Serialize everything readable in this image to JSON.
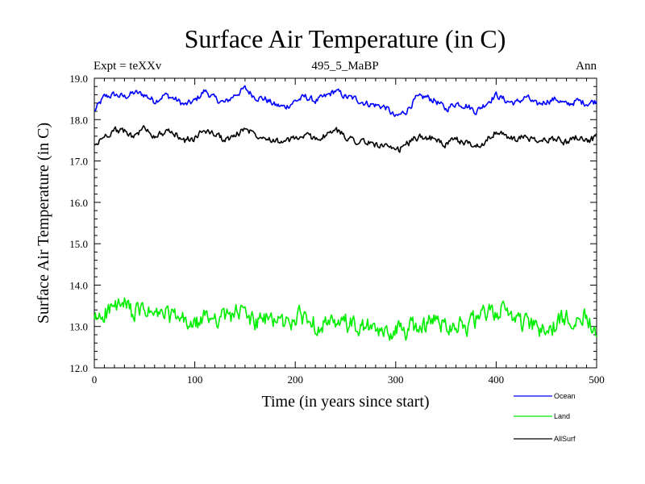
{
  "chart_data": {
    "type": "line",
    "title": "Surface Air Temperature (in C)",
    "subtitle": "495_5_MaBP",
    "experiment_label": "Expt = teXXv",
    "season_label": "Ann",
    "xlabel": "Time (in years since start)",
    "ylabel": "Surface Air Temperature (in C)",
    "xlim": [
      0,
      500
    ],
    "ylim": [
      12.0,
      19.0
    ],
    "xticks": [
      0,
      100,
      200,
      300,
      400,
      500
    ],
    "xtick_labels": [
      "0",
      "100",
      "200",
      "300",
      "400",
      "500"
    ],
    "yticks": [
      12,
      13,
      14,
      15,
      16,
      17,
      18,
      19
    ],
    "ytick_labels": [
      "12.0",
      "13.0",
      "14.0",
      "15.0",
      "16.0",
      "17.0",
      "18.0",
      "19.0"
    ],
    "legend_position": "bottom-right, below plot",
    "series": [
      {
        "name": "Ocean",
        "color": "#0000ff",
        "x": [
          0,
          10,
          20,
          30,
          40,
          50,
          60,
          70,
          80,
          90,
          100,
          110,
          120,
          130,
          140,
          150,
          160,
          170,
          180,
          190,
          200,
          210,
          220,
          230,
          240,
          250,
          260,
          270,
          280,
          290,
          300,
          310,
          320,
          330,
          340,
          350,
          360,
          370,
          380,
          390,
          400,
          410,
          420,
          430,
          440,
          450,
          460,
          470,
          480,
          490,
          500
        ],
        "values": [
          18.2,
          18.55,
          18.6,
          18.55,
          18.65,
          18.6,
          18.45,
          18.6,
          18.5,
          18.35,
          18.45,
          18.7,
          18.5,
          18.4,
          18.6,
          18.75,
          18.55,
          18.5,
          18.35,
          18.3,
          18.45,
          18.55,
          18.45,
          18.55,
          18.7,
          18.55,
          18.5,
          18.4,
          18.35,
          18.3,
          18.05,
          18.2,
          18.5,
          18.55,
          18.45,
          18.25,
          18.4,
          18.35,
          18.2,
          18.4,
          18.6,
          18.45,
          18.4,
          18.55,
          18.35,
          18.45,
          18.5,
          18.35,
          18.45,
          18.4,
          18.45
        ]
      },
      {
        "name": "Land",
        "color": "#00ee00",
        "x": [
          0,
          10,
          20,
          30,
          40,
          50,
          60,
          70,
          80,
          90,
          100,
          110,
          120,
          130,
          140,
          150,
          160,
          170,
          180,
          190,
          200,
          210,
          220,
          230,
          240,
          250,
          260,
          270,
          280,
          290,
          300,
          310,
          320,
          330,
          340,
          350,
          360,
          370,
          380,
          390,
          400,
          410,
          420,
          430,
          440,
          450,
          460,
          470,
          480,
          490,
          500
        ],
        "values": [
          13.1,
          13.35,
          13.45,
          13.5,
          13.3,
          13.4,
          13.25,
          13.3,
          13.2,
          13.1,
          13.0,
          13.2,
          13.25,
          13.2,
          13.35,
          13.3,
          13.1,
          13.15,
          13.2,
          13.05,
          13.2,
          13.25,
          13.05,
          13.1,
          12.95,
          13.1,
          12.95,
          13.0,
          12.85,
          12.8,
          12.95,
          12.9,
          13.0,
          13.05,
          13.15,
          13.05,
          13.1,
          13.0,
          13.15,
          13.3,
          13.35,
          13.4,
          13.2,
          13.05,
          12.95,
          12.85,
          13.05,
          13.2,
          13.3,
          13.25,
          13.0
        ]
      },
      {
        "name": "AllSurf",
        "color": "#000000",
        "x": [
          0,
          10,
          20,
          30,
          40,
          50,
          60,
          70,
          80,
          90,
          100,
          110,
          120,
          130,
          140,
          150,
          160,
          170,
          180,
          190,
          200,
          210,
          220,
          230,
          240,
          250,
          260,
          270,
          280,
          290,
          300,
          310,
          320,
          330,
          340,
          350,
          360,
          370,
          380,
          390,
          400,
          410,
          420,
          430,
          440,
          450,
          460,
          470,
          480,
          490,
          500
        ],
        "values": [
          17.35,
          17.6,
          17.75,
          17.7,
          17.6,
          17.8,
          17.6,
          17.7,
          17.65,
          17.5,
          17.55,
          17.75,
          17.65,
          17.5,
          17.6,
          17.8,
          17.65,
          17.6,
          17.5,
          17.45,
          17.55,
          17.6,
          17.55,
          17.6,
          17.75,
          17.6,
          17.5,
          17.45,
          17.4,
          17.35,
          17.2,
          17.4,
          17.55,
          17.6,
          17.5,
          17.4,
          17.5,
          17.45,
          17.35,
          17.5,
          17.7,
          17.6,
          17.5,
          17.6,
          17.45,
          17.5,
          17.55,
          17.45,
          17.6,
          17.5,
          17.55
        ]
      }
    ]
  }
}
